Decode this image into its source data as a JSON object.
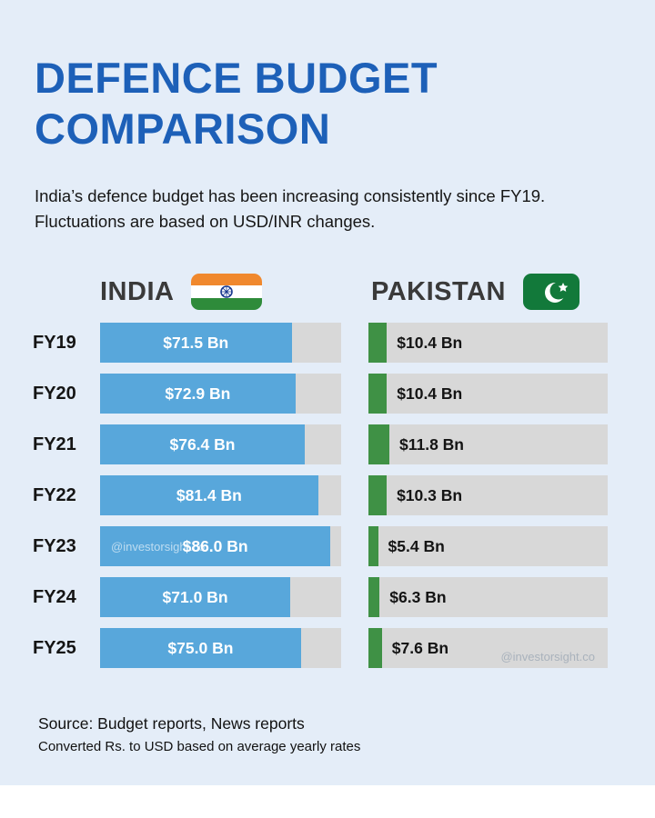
{
  "page": {
    "title_line1": "DEFENCE BUDGET",
    "title_line2": "COMPARISON",
    "subtitle_line1": "India’s defence budget has been increasing consistently since FY19.",
    "subtitle_line2": "Fluctuations are based on USD/INR changes.",
    "watermark": "@investorsight.co",
    "source_line1": "Source: Budget reports, News reports",
    "source_line2": "Converted Rs. to USD based on average yearly rates"
  },
  "colors": {
    "background": "#e4edf8",
    "title": "#1d60b8",
    "india_bar": "#58a7db",
    "pakistan_bar": "#3f9145",
    "track": "#d8d8d8",
    "india_flag_saffron": "#f0882d",
    "india_flag_green": "#2e8b3a",
    "india_flag_chakra": "#1a3a8f",
    "pakistan_flag_green": "#12793a"
  },
  "chart_data": {
    "type": "bar",
    "orientation": "horizontal",
    "title": "Defence Budget Comparison",
    "categories": [
      "FY19",
      "FY20",
      "FY21",
      "FY22",
      "FY23",
      "FY24",
      "FY25"
    ],
    "unit": "USD Bn",
    "series": [
      {
        "name": "INDIA",
        "flag": "india-flag",
        "values": [
          71.5,
          72.9,
          76.4,
          81.4,
          86.0,
          71.0,
          75.0
        ],
        "labels": [
          "$71.5 Bn",
          "$72.9 Bn",
          "$76.4 Bn",
          "$81.4 Bn",
          "$86.0 Bn",
          "$71.0 Bn",
          "$75.0 Bn"
        ],
        "axis_max": 90
      },
      {
        "name": "PAKISTAN",
        "flag": "pakistan-flag",
        "values": [
          10.4,
          10.4,
          11.8,
          10.3,
          5.4,
          6.3,
          7.6
        ],
        "labels": [
          "$10.4 Bn",
          "$10.4 Bn",
          "$11.8 Bn",
          "$10.3 Bn",
          "$5.4 Bn",
          "$6.3 Bn",
          "$7.6 Bn"
        ],
        "axis_max": 135
      }
    ],
    "legend_position": "top",
    "grid": false
  }
}
